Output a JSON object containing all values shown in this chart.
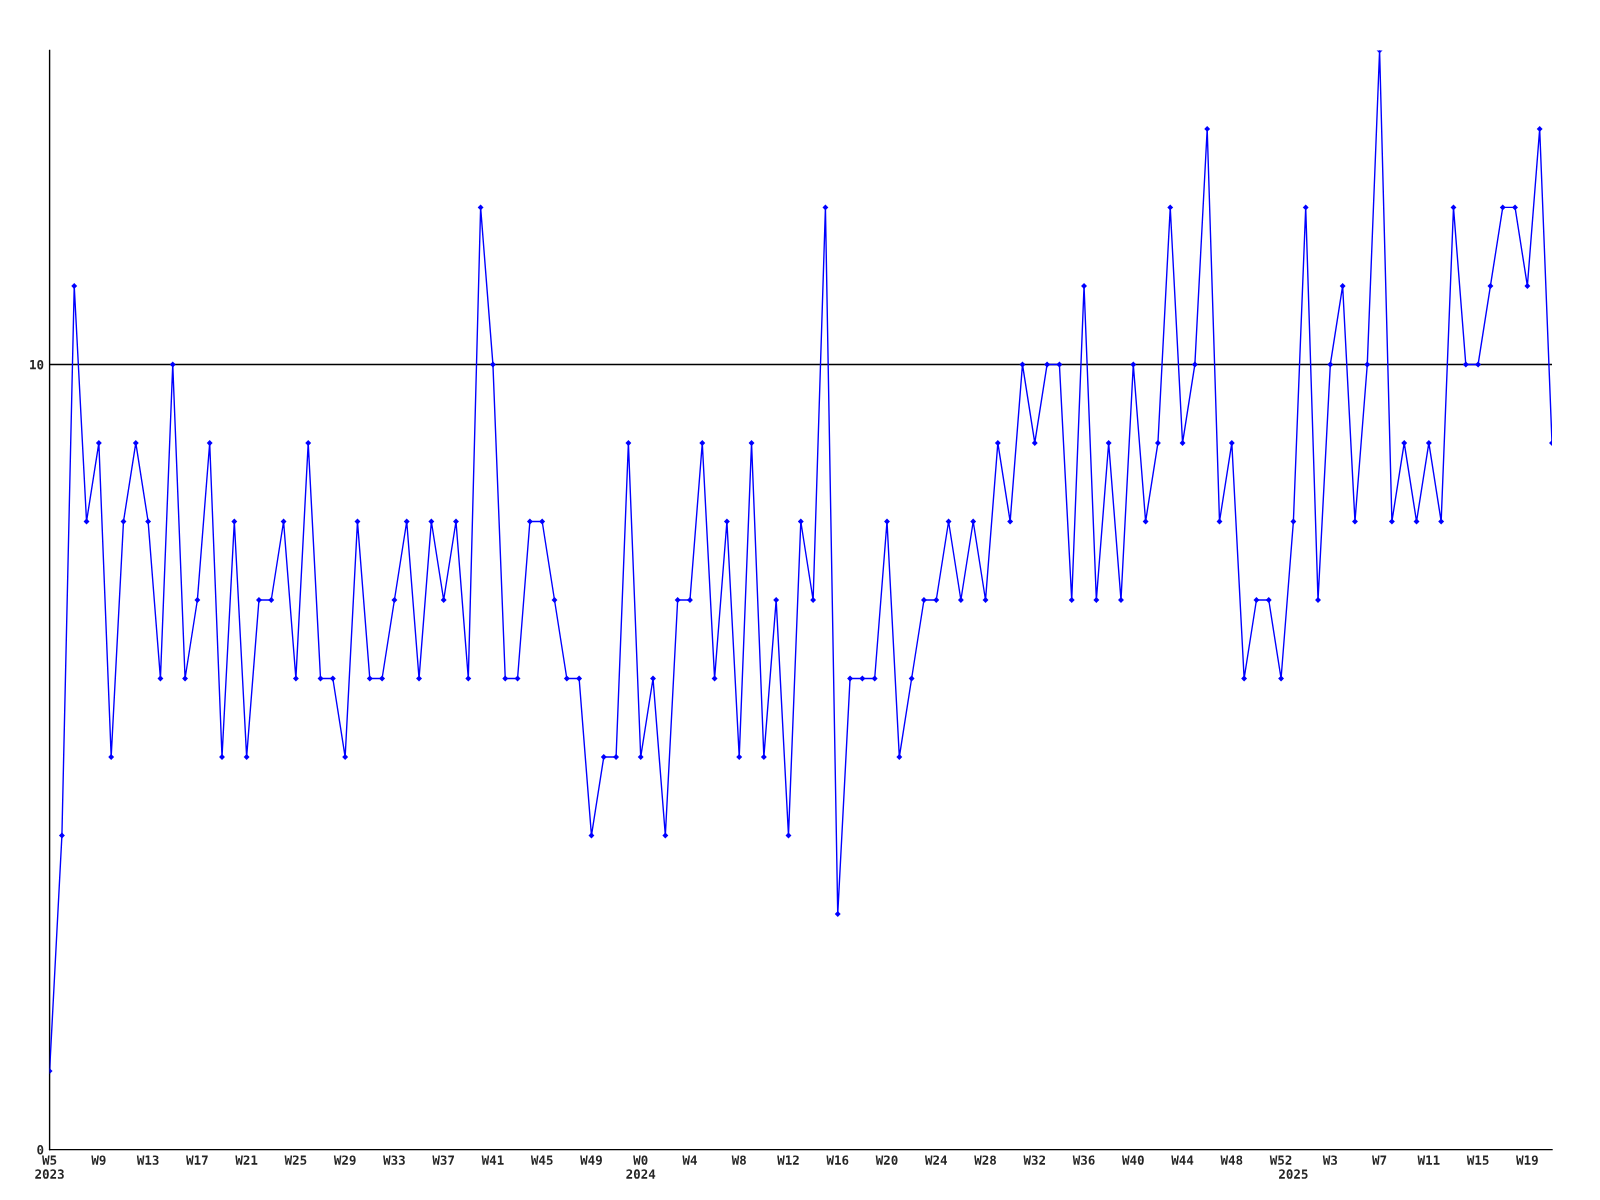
{
  "chart_data": {
    "type": "line",
    "categories": [
      "W5\n2023",
      null,
      null,
      null,
      "W9",
      null,
      null,
      null,
      "W13",
      null,
      null,
      null,
      "W17",
      null,
      null,
      null,
      "W21",
      null,
      null,
      null,
      "W25",
      null,
      null,
      null,
      "W29",
      null,
      null,
      null,
      "W33",
      null,
      null,
      null,
      "W37",
      null,
      null,
      null,
      "W41",
      null,
      null,
      null,
      "W45",
      null,
      null,
      null,
      "W49",
      null,
      null,
      null,
      "W0\n2024",
      null,
      null,
      null,
      "W4",
      null,
      null,
      null,
      "W8",
      null,
      null,
      null,
      "W12",
      null,
      null,
      null,
      "W16",
      null,
      null,
      null,
      "W20",
      null,
      null,
      null,
      "W24",
      null,
      null,
      null,
      "W28",
      null,
      null,
      null,
      "W32",
      null,
      null,
      null,
      "W36",
      null,
      null,
      null,
      "W40",
      null,
      null,
      null,
      "W44",
      null,
      null,
      null,
      "W48",
      null,
      null,
      null,
      "W52",
      "\n2025",
      null,
      null,
      "W3",
      null,
      null,
      null,
      "W7",
      null,
      null,
      null,
      "W11",
      null,
      null,
      null,
      "W15",
      null,
      null,
      null,
      "W19",
      null,
      null
    ],
    "series": [
      {
        "color": "#0000ff",
        "values": [
          1,
          4,
          11,
          8,
          9,
          5,
          8,
          9,
          8,
          6,
          10,
          6,
          7,
          9,
          5,
          8,
          5,
          7,
          7,
          8,
          6,
          9,
          6,
          6,
          5,
          8,
          6,
          6,
          7,
          8,
          6,
          8,
          7,
          8,
          6,
          12,
          10,
          6,
          6,
          8,
          8,
          7,
          6,
          6,
          4,
          5,
          5,
          9,
          5,
          6,
          4,
          7,
          7,
          9,
          6,
          8,
          5,
          9,
          5,
          7,
          4,
          8,
          7,
          12,
          3,
          6,
          6,
          6,
          8,
          5,
          6,
          7,
          7,
          8,
          7,
          8,
          7,
          9,
          8,
          10,
          9,
          10,
          10,
          7,
          11,
          7,
          9,
          7,
          10,
          8,
          9,
          12,
          9,
          10,
          13,
          8,
          9,
          6,
          7,
          7,
          6,
          8,
          12,
          7,
          10,
          11,
          8,
          10,
          14,
          8,
          9,
          8,
          9,
          8,
          12,
          10,
          10,
          11,
          12,
          12,
          11,
          13,
          9
        ]
      }
    ],
    "ylim": [
      0,
      14
    ],
    "yticks": [
      0,
      10
    ],
    "ref_lines": [
      {
        "axis": "y",
        "value": 10,
        "color": "#000000"
      }
    ],
    "marker": "diamond",
    "line_style": "solid",
    "grid": false,
    "legend": false
  }
}
